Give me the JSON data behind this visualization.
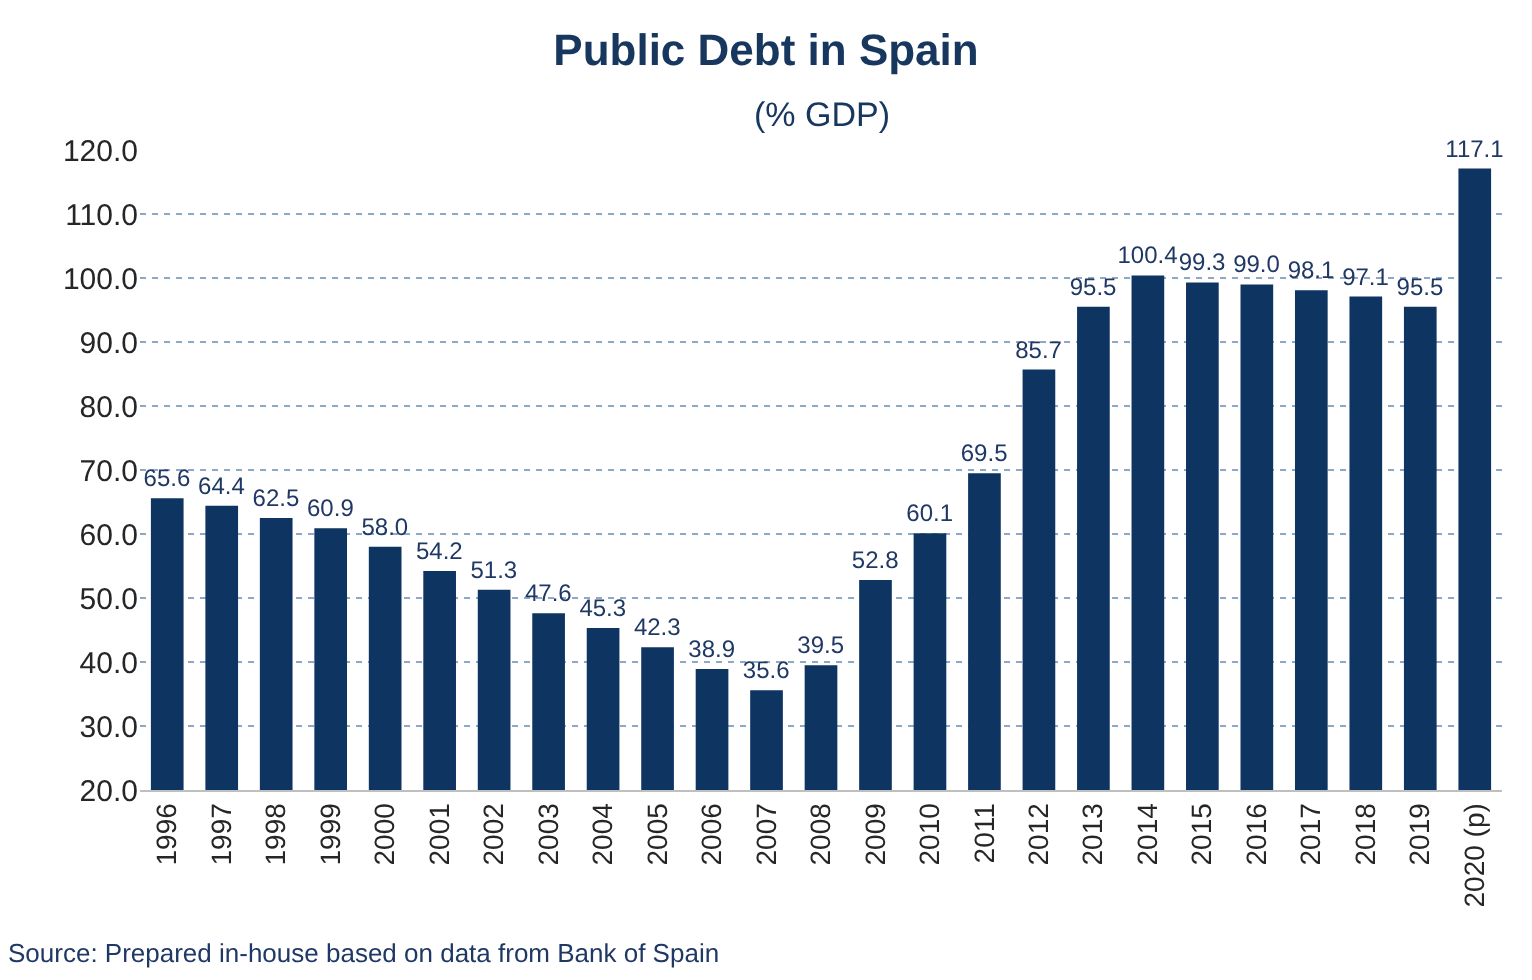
{
  "chart_data": {
    "type": "bar",
    "title": "Public Debt in Spain",
    "subtitle": "(% GDP)",
    "categories": [
      "1996",
      "1997",
      "1998",
      "1999",
      "2000",
      "2001",
      "2002",
      "2003",
      "2004",
      "2005",
      "2006",
      "2007",
      "2008",
      "2009",
      "2010",
      "2011",
      "2012",
      "2013",
      "2014",
      "2015",
      "2016",
      "2017",
      "2018",
      "2019",
      "2020 (p)"
    ],
    "values": [
      65.6,
      64.4,
      62.5,
      60.9,
      58.0,
      54.2,
      51.3,
      47.6,
      45.3,
      42.3,
      38.9,
      35.6,
      39.5,
      52.8,
      60.1,
      69.5,
      85.7,
      95.5,
      100.4,
      99.3,
      99.0,
      98.1,
      97.1,
      95.5,
      117.1
    ],
    "value_labels": [
      "65.6",
      "64.4",
      "62.5",
      "60.9",
      "58.0",
      "54.2",
      "51.3",
      "47.6",
      "45.3",
      "42.3",
      "38.9",
      "35.6",
      "39.5",
      "52.8",
      "60.1",
      "69.5",
      "85.7",
      "95.5",
      "100.4",
      "99.3",
      "99.0",
      "98.1",
      "97.1",
      "95.5",
      "117.1"
    ],
    "color": "#0e3461",
    "ylim": [
      20,
      120
    ],
    "yticks": [
      {
        "value": 20,
        "label": "20.0"
      },
      {
        "value": 30,
        "label": "30.0"
      },
      {
        "value": 40,
        "label": "40.0"
      },
      {
        "value": 50,
        "label": "50.0"
      },
      {
        "value": 60,
        "label": "60.0"
      },
      {
        "value": 70,
        "label": "70.0"
      },
      {
        "value": 80,
        "label": "80.0"
      },
      {
        "value": 90,
        "label": "90.0"
      },
      {
        "value": 100,
        "label": "100.0"
      },
      {
        "value": 110,
        "label": "110.0"
      },
      {
        "value": 120,
        "label": "120.0"
      }
    ],
    "grid": "y",
    "annotations": [
      "Source: Prepared in-house based on data from Bank of Spain"
    ]
  }
}
